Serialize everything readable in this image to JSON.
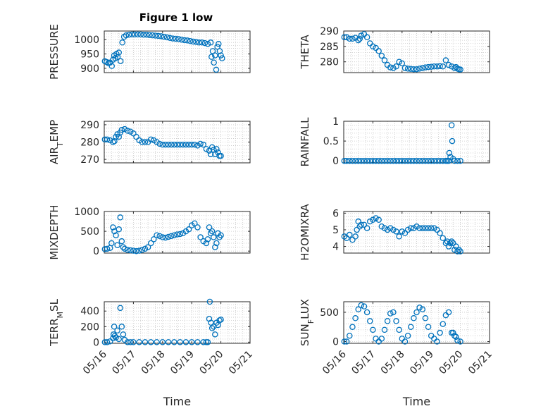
{
  "figure": {
    "title": "Figure 1 low",
    "xlabel": "Time",
    "xtick_labels": [
      "05/16",
      "05/17",
      "05/18",
      "05/19",
      "05/20",
      "05/21"
    ],
    "marker_color": "#0072BD",
    "grid": "minor dotted"
  },
  "chart_data": [
    {
      "type": "scatter",
      "ylabel": "PRESSURE",
      "ylim": [
        885,
        1030
      ],
      "yticks": [
        900,
        950,
        1000
      ],
      "x": [
        0.02,
        0.08,
        0.14,
        0.2,
        0.26,
        0.3,
        0.34,
        0.38,
        0.42,
        0.46,
        0.5,
        0.56,
        0.62,
        0.68,
        0.75,
        0.85,
        0.95,
        1.05,
        1.15,
        1.25,
        1.35,
        1.45,
        1.55,
        1.65,
        1.75,
        1.85,
        1.95,
        2.05,
        2.15,
        2.25,
        2.35,
        2.45,
        2.55,
        2.65,
        2.75,
        2.85,
        2.95,
        3.05,
        3.15,
        3.25,
        3.35,
        3.45,
        3.55,
        3.65,
        3.68,
        3.72,
        3.76,
        3.8,
        3.84,
        3.88,
        3.92,
        3.96,
        4.0,
        4.04
      ],
      "y": [
        925,
        922,
        918,
        920,
        908,
        930,
        945,
        935,
        950,
        940,
        955,
        925,
        990,
        1010,
        1015,
        1017,
        1018,
        1018,
        1018,
        1018,
        1017,
        1017,
        1016,
        1015,
        1014,
        1013,
        1012,
        1010,
        1008,
        1006,
        1004,
        1003,
        1002,
        1000,
        998,
        997,
        995,
        993,
        992,
        990,
        990,
        988,
        985,
        990,
        940,
        960,
        920,
        945,
        895,
        975,
        985,
        960,
        945,
        935
      ]
    },
    {
      "type": "scatter",
      "ylabel": "THETA",
      "ylim": [
        276.5,
        290
      ],
      "yticks": [
        280,
        285,
        290
      ],
      "x": [
        0.02,
        0.1,
        0.2,
        0.3,
        0.4,
        0.5,
        0.55,
        0.6,
        0.7,
        0.8,
        0.9,
        1.0,
        1.1,
        1.2,
        1.3,
        1.4,
        1.5,
        1.6,
        1.7,
        1.8,
        1.9,
        2.0,
        2.1,
        2.2,
        2.3,
        2.4,
        2.5,
        2.6,
        2.7,
        2.8,
        2.9,
        3.0,
        3.1,
        3.2,
        3.3,
        3.4,
        3.5,
        3.6,
        3.7,
        3.8,
        3.85,
        3.9,
        3.95,
        4.0
      ],
      "y": [
        288,
        288,
        287.5,
        287.5,
        287.8,
        287,
        287.5,
        288.5,
        289,
        288,
        286,
        285,
        284.5,
        283.5,
        282,
        280.5,
        279,
        278.2,
        278,
        278.5,
        280,
        279.5,
        278,
        277.8,
        277.7,
        277.6,
        277.6,
        277.8,
        278,
        278.2,
        278.3,
        278.4,
        278.5,
        278.5,
        278.6,
        278.5,
        280.5,
        279,
        278.5,
        278,
        278.3,
        277.8,
        277.6,
        277.5
      ]
    },
    {
      "type": "scatter",
      "ylabel": "AIR_TEMP",
      "ylim": [
        268,
        292
      ],
      "yticks": [
        270,
        280,
        290
      ],
      "x": [
        0.02,
        0.1,
        0.2,
        0.3,
        0.35,
        0.4,
        0.45,
        0.5,
        0.55,
        0.6,
        0.7,
        0.8,
        0.9,
        1.0,
        1.1,
        1.2,
        1.3,
        1.4,
        1.5,
        1.6,
        1.7,
        1.8,
        1.9,
        2.0,
        2.1,
        2.2,
        2.3,
        2.4,
        2.5,
        2.6,
        2.7,
        2.8,
        2.9,
        3.0,
        3.1,
        3.2,
        3.3,
        3.4,
        3.5,
        3.6,
        3.65,
        3.7,
        3.75,
        3.8,
        3.85,
        3.9,
        3.95,
        4.0
      ],
      "y": [
        281.5,
        281.5,
        281,
        280,
        280.5,
        283,
        284.5,
        283,
        285.5,
        287,
        287.5,
        286.5,
        286,
        285,
        283,
        281,
        280,
        280,
        280,
        281.5,
        281,
        280,
        279,
        278.5,
        278.5,
        278.5,
        278.5,
        278.5,
        278.5,
        278.5,
        278.5,
        278.5,
        278.5,
        278.5,
        278.5,
        278,
        279,
        278.5,
        276,
        275,
        273,
        277,
        275.5,
        273,
        276,
        274,
        272,
        272
      ]
    },
    {
      "type": "scatter",
      "ylabel": "RAINFALL",
      "ylim": [
        -0.05,
        1
      ],
      "yticks": [
        0,
        0.5,
        1
      ],
      "ytick_labels": [
        "0",
        "0.5",
        "1"
      ],
      "x": [
        0.02,
        0.1,
        0.2,
        0.3,
        0.4,
        0.5,
        0.6,
        0.7,
        0.8,
        0.9,
        1.0,
        1.1,
        1.2,
        1.3,
        1.4,
        1.5,
        1.6,
        1.7,
        1.8,
        1.9,
        2.0,
        2.1,
        2.2,
        2.3,
        2.4,
        2.5,
        2.6,
        2.7,
        2.8,
        2.9,
        3.0,
        3.1,
        3.2,
        3.3,
        3.4,
        3.5,
        3.55,
        3.6,
        3.62,
        3.66,
        3.7,
        3.72,
        3.75,
        3.8,
        3.9,
        4.0
      ],
      "y": [
        0,
        0,
        0,
        0,
        0,
        0,
        0,
        0,
        0,
        0,
        0,
        0,
        0,
        0,
        0,
        0,
        0,
        0,
        0,
        0,
        0,
        0,
        0,
        0,
        0,
        0,
        0,
        0,
        0,
        0,
        0,
        0,
        0,
        0,
        0,
        0,
        0,
        0,
        0.2,
        0.1,
        0.9,
        0.5,
        0.05,
        0,
        0,
        0
      ]
    },
    {
      "type": "scatter",
      "ylabel": "MIXDEPTH",
      "ylim": [
        -50,
        1000
      ],
      "yticks": [
        0,
        500,
        1000
      ],
      "x": [
        0.02,
        0.1,
        0.2,
        0.25,
        0.3,
        0.35,
        0.4,
        0.45,
        0.5,
        0.55,
        0.6,
        0.65,
        0.7,
        0.8,
        0.9,
        1.0,
        1.1,
        1.2,
        1.3,
        1.4,
        1.5,
        1.6,
        1.7,
        1.8,
        1.9,
        2.0,
        2.1,
        2.2,
        2.3,
        2.4,
        2.5,
        2.6,
        2.7,
        2.8,
        2.9,
        3.0,
        3.1,
        3.2,
        3.3,
        3.4,
        3.5,
        3.55,
        3.6,
        3.65,
        3.7,
        3.75,
        3.8,
        3.85,
        3.9,
        3.95,
        4.0
      ],
      "y": [
        50,
        60,
        80,
        200,
        600,
        500,
        400,
        150,
        550,
        850,
        250,
        100,
        60,
        30,
        20,
        10,
        0,
        10,
        30,
        60,
        100,
        200,
        300,
        400,
        380,
        350,
        340,
        360,
        380,
        400,
        420,
        430,
        450,
        500,
        550,
        650,
        700,
        600,
        350,
        250,
        200,
        300,
        600,
        450,
        500,
        350,
        100,
        200,
        450,
        350,
        400
      ]
    },
    {
      "type": "scatter",
      "ylabel": "H2OMIXRA",
      "ylim": [
        3.6,
        6.1
      ],
      "yticks": [
        4,
        5,
        6
      ],
      "x": [
        0.02,
        0.1,
        0.2,
        0.3,
        0.4,
        0.45,
        0.5,
        0.55,
        0.6,
        0.7,
        0.8,
        0.9,
        1.0,
        1.1,
        1.2,
        1.3,
        1.4,
        1.5,
        1.6,
        1.7,
        1.8,
        1.9,
        2.0,
        2.1,
        2.2,
        2.3,
        2.4,
        2.5,
        2.6,
        2.7,
        2.8,
        2.9,
        3.0,
        3.1,
        3.2,
        3.3,
        3.4,
        3.5,
        3.55,
        3.6,
        3.65,
        3.7,
        3.75,
        3.8,
        3.85,
        3.9,
        3.95,
        4.0
      ],
      "y": [
        4.6,
        4.5,
        4.7,
        4.4,
        4.6,
        5.0,
        5.5,
        5.2,
        5.3,
        5.3,
        5.1,
        5.5,
        5.6,
        5.7,
        5.6,
        5.2,
        5.1,
        5.0,
        5.1,
        5.0,
        4.9,
        4.6,
        4.9,
        4.8,
        5.0,
        5.1,
        5.1,
        5.2,
        5.1,
        5.1,
        5.1,
        5.1,
        5.1,
        5.1,
        5.0,
        4.8,
        4.5,
        4.2,
        4.3,
        4.0,
        4.2,
        4.3,
        4.2,
        3.8,
        4.0,
        3.7,
        3.8,
        3.7
      ]
    },
    {
      "type": "scatter",
      "ylabel": "TERR_MSL",
      "ylim": [
        -15,
        520
      ],
      "yticks": [
        0,
        200,
        400
      ],
      "x": [
        0.02,
        0.1,
        0.2,
        0.3,
        0.32,
        0.34,
        0.36,
        0.4,
        0.45,
        0.5,
        0.55,
        0.6,
        0.65,
        0.7,
        0.8,
        0.9,
        1.0,
        1.2,
        1.4,
        1.6,
        1.8,
        2.0,
        2.2,
        2.4,
        2.6,
        2.8,
        3.0,
        3.2,
        3.4,
        3.5,
        3.55,
        3.6,
        3.62,
        3.66,
        3.7,
        3.75,
        3.8,
        3.85,
        3.9,
        3.95,
        4.0
      ],
      "y": [
        0,
        0,
        10,
        50,
        100,
        200,
        80,
        60,
        150,
        40,
        440,
        200,
        100,
        30,
        0,
        0,
        0,
        0,
        0,
        0,
        0,
        0,
        0,
        0,
        0,
        0,
        0,
        0,
        0,
        0,
        0,
        300,
        520,
        250,
        180,
        200,
        100,
        250,
        220,
        280,
        290
      ]
    },
    {
      "type": "scatter",
      "ylabel": "SUN_FLUX",
      "ylim": [
        -30,
        680
      ],
      "yticks": [
        0,
        500
      ],
      "x": [
        0.02,
        0.1,
        0.2,
        0.3,
        0.4,
        0.5,
        0.6,
        0.7,
        0.8,
        0.9,
        1.0,
        1.1,
        1.2,
        1.3,
        1.4,
        1.5,
        1.6,
        1.7,
        1.8,
        1.9,
        2.0,
        2.1,
        2.2,
        2.3,
        2.4,
        2.5,
        2.6,
        2.7,
        2.8,
        2.9,
        3.0,
        3.1,
        3.2,
        3.3,
        3.4,
        3.5,
        3.6,
        3.7,
        3.75,
        3.8,
        3.85,
        3.9,
        4.0
      ],
      "y": [
        0,
        0,
        100,
        250,
        400,
        550,
        620,
        600,
        500,
        350,
        200,
        50,
        0,
        50,
        200,
        350,
        480,
        500,
        350,
        200,
        50,
        0,
        100,
        250,
        400,
        500,
        580,
        550,
        400,
        250,
        100,
        50,
        0,
        150,
        300,
        450,
        500,
        150,
        150,
        100,
        80,
        20,
        0
      ]
    }
  ]
}
